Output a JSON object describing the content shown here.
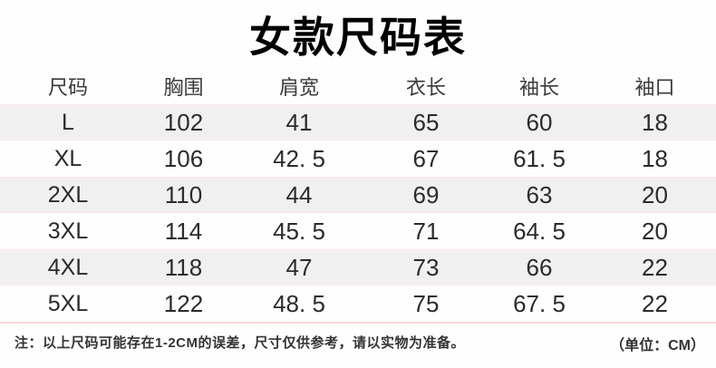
{
  "title": "女款尺码表",
  "table": {
    "headers": [
      "尺码",
      "胸围",
      "肩宽",
      "衣长",
      "袖长",
      "袖口"
    ],
    "rows": [
      [
        "L",
        "102",
        "41",
        "65",
        "60",
        "18"
      ],
      [
        "XL",
        "106",
        "42. 5",
        "67",
        "61. 5",
        "18"
      ],
      [
        "2XL",
        "110",
        "44",
        "69",
        "63",
        "20"
      ],
      [
        "3XL",
        "114",
        "45. 5",
        "71",
        "64. 5",
        "20"
      ],
      [
        "4XL",
        "118",
        "47",
        "73",
        "66",
        "22"
      ],
      [
        "5XL",
        "122",
        "48. 5",
        "75",
        "67. 5",
        "22"
      ]
    ]
  },
  "footer": {
    "note": "注：以上尺码可能存在1-2CM的误差，尺寸仅供参考，请以实物为准备。",
    "unit": "（单位：CM）"
  },
  "colors": {
    "background": "#fefefe",
    "stripe": "#f0f0f0",
    "separator": "#f6d9d9",
    "title_text": "#000000",
    "body_text": "#2b2b2b"
  }
}
